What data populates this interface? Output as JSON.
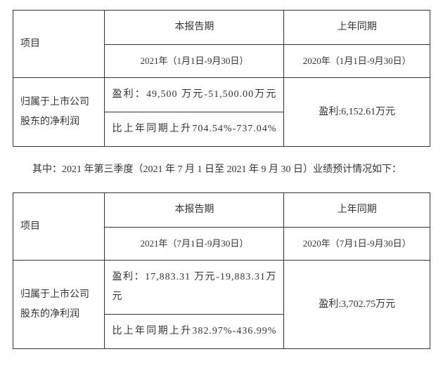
{
  "table1": {
    "type": "table",
    "border_color": "#333333",
    "text_color": "#333333",
    "background_color": "#ffffff",
    "font_family": "SimSun",
    "header": {
      "col1": "项目",
      "col2": "本报告期",
      "col3": "上年同期"
    },
    "subheader": {
      "col2": "2021年（1月1日-9月30日）",
      "col3": "2020年（1月1日-9月30日）"
    },
    "row_label": "归属于上市公司股东的净利润",
    "current_profit": "盈利：49,500 万元-51,500.00万元",
    "current_change": "比上年同期上升704.54%-737.04%",
    "prev_profit": "盈利:6,152.61万元",
    "column_widths_pct": [
      22,
      43,
      35
    ],
    "font_size_pt": 14,
    "line_height": 2.0
  },
  "middle_paragraph": "其中：2021 年第三季度（2021 年 7 月 1 日至 2021 年 9 月 30 日）业绩预计情况如下：",
  "table2": {
    "type": "table",
    "border_color": "#333333",
    "text_color": "#333333",
    "background_color": "#ffffff",
    "font_family": "SimSun",
    "header": {
      "col1": "项目",
      "col2": "本报告期",
      "col3": "上年同期"
    },
    "subheader": {
      "col2": "2021年（7月1日-9月30日）",
      "col3": "2020年（7月1日-9月30日）"
    },
    "row_label": "归属于上市公司股东的净利润",
    "current_profit": "盈利：17,883.31 万元-19,883.31万元",
    "current_change": "比上年同期上升382.97%-436.99%",
    "prev_profit": "盈利:3,702.75万元",
    "column_widths_pct": [
      22,
      43,
      35
    ],
    "font_size_pt": 14,
    "line_height": 2.0
  }
}
